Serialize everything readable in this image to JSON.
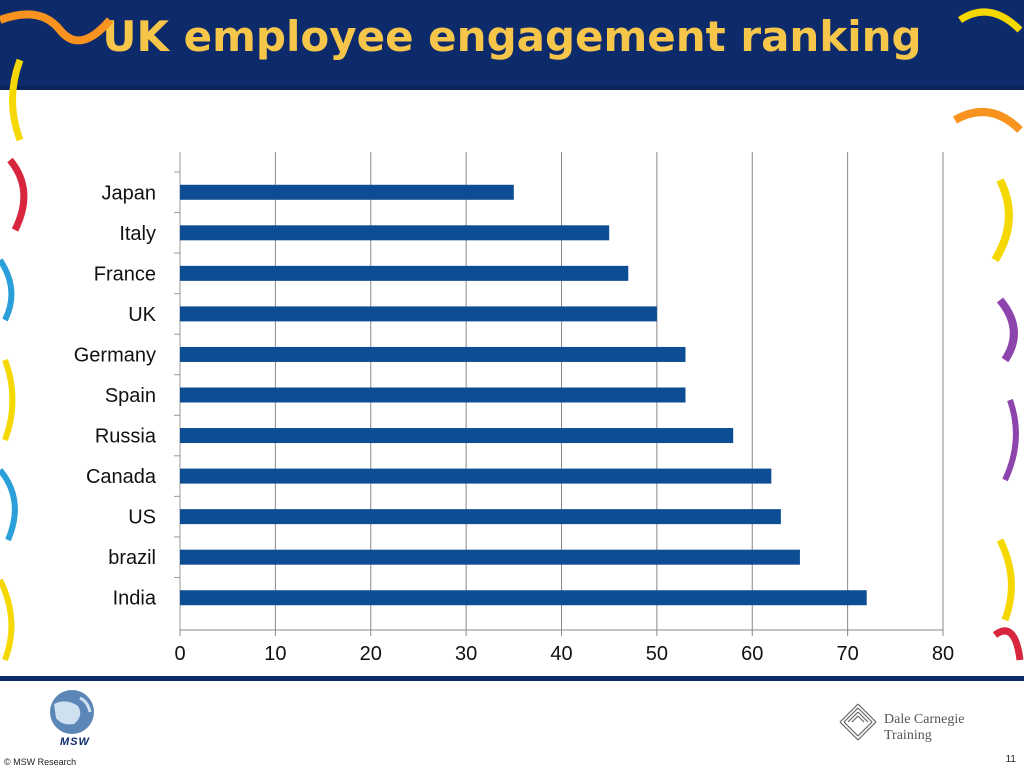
{
  "slide": {
    "title": "UK employee engagement ranking",
    "page_number": "11",
    "copyright": "© MSW Research",
    "msw_logo_text": "MSW",
    "dc_logo_line1": "Dale Carnegie",
    "dc_logo_line2": "Training"
  },
  "colors": {
    "header_bg": "#0d2a6b",
    "title_text": "#f6c64a",
    "bar": "#0d4d94"
  },
  "chart_data": {
    "type": "bar",
    "orientation": "horizontal",
    "categories": [
      "Japan",
      "Italy",
      "France",
      "UK",
      "Germany",
      "Spain",
      "Russia",
      "Canada",
      "US",
      "brazil",
      "India"
    ],
    "values": [
      35,
      45,
      47,
      50,
      53,
      53,
      58,
      62,
      63,
      65,
      72
    ],
    "xlim": [
      0,
      80
    ],
    "xticks": [
      0,
      10,
      20,
      30,
      40,
      50,
      60,
      70,
      80
    ],
    "grid": "vertical"
  }
}
